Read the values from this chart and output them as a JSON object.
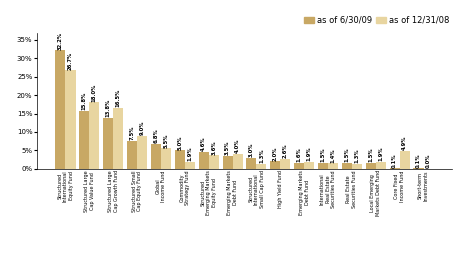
{
  "categories": [
    "Structured\nInternational\nEquity Fund",
    "Structured Large\nCap Value Fund",
    "Structured Large\nCap Growth Fund",
    "Structured Small\nCap Equity Fund",
    "Global\nIncome Fund",
    "Commodity\nStrategy Fund",
    "Structured\nEmerging Markets\nEquity Fund",
    "Emerging Markets\nDebt Fund",
    "Structured\nInternational\nSmall Cap Fund",
    "High Yield Fund",
    "Emerging Markets\nDebt Fund",
    "International\nReal Estate\nSecurities Fund",
    "Real Estate\nSecurities Fund",
    "Local Emerging\nMarkets Debt Fund",
    "Core Fixed\nIncome Fund",
    "Short-term\nInvestments"
  ],
  "values_2009": [
    32.2,
    15.8,
    13.8,
    7.5,
    6.8,
    5.0,
    4.6,
    3.5,
    3.0,
    2.0,
    1.6,
    1.5,
    1.5,
    1.5,
    0.1,
    0.1
  ],
  "values_2008": [
    26.7,
    18.0,
    16.5,
    9.0,
    5.5,
    1.9,
    3.6,
    4.0,
    1.3,
    2.6,
    1.9,
    1.4,
    1.3,
    1.9,
    4.9,
    0.0
  ],
  "labels_2009": [
    "32.2%",
    "15.8%",
    "13.8%",
    "7.5%",
    "6.8%",
    "5.0%",
    "4.6%",
    "3.5%",
    "3.0%",
    "2.0%",
    "1.6%",
    "1.5%",
    "1.5%",
    "1.5%",
    "0.1%",
    "0.1%"
  ],
  "labels_2008": [
    "26.7%",
    "18.0%",
    "16.5%",
    "9.0%",
    "5.5%",
    "1.9%",
    "3.6%",
    "4.0%",
    "1.3%",
    "2.6%",
    "1.9%",
    "1.4%",
    "1.3%",
    "1.9%",
    "4.9%",
    "0.0%"
  ],
  "color_2009": "#C8A864",
  "color_2008": "#E8D5A0",
  "legend_label_2009": "as of 6/30/09",
  "legend_label_2008": "as of 12/31/08",
  "ylim": [
    0,
    37
  ],
  "yticks": [
    0,
    5,
    10,
    15,
    20,
    25,
    30,
    35
  ],
  "ytick_labels": [
    "0%",
    "5%",
    "10%",
    "15%",
    "20%",
    "25%",
    "30%",
    "35%"
  ],
  "bar_width": 0.42,
  "value_fontsize": 3.8,
  "label_fontsize": 3.5,
  "legend_fontsize": 6.0,
  "tick_fontsize": 5.0,
  "background_color": "#FFFFFF"
}
